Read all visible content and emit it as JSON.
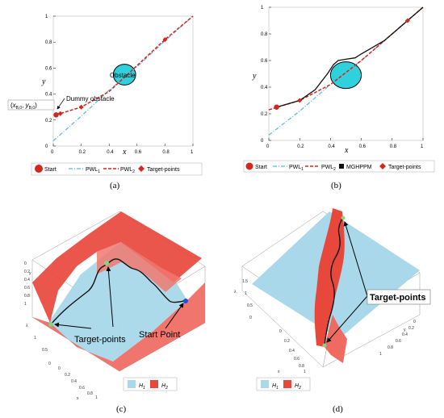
{
  "chart_data": [
    {
      "panel": "a",
      "type": "line",
      "caption": "(a)",
      "xlabel": "x",
      "ylabel": "y",
      "xlim": [
        0,
        1
      ],
      "ylim": [
        0,
        1
      ],
      "xticks": [
        "0",
        "0.2",
        "0.4",
        "0.6",
        "0.8",
        "1"
      ],
      "yticks": [
        "0",
        "0.2",
        "0.4",
        "0.6",
        "0.8",
        "1"
      ],
      "obstacle": {
        "label": "Obstacle",
        "cx": 0.51,
        "cy": 0.55,
        "r": 0.08
      },
      "dummy_label": "Dummy obstacle",
      "start_label": "(x_{B,0}, y_{B,0})",
      "start_point": {
        "x": 0.02,
        "y": 0.24
      },
      "series": [
        {
          "name": "PWL1",
          "style": "dash-dot",
          "color": "#5bb8d6",
          "x": [
            0,
            0.2,
            0.4,
            0.6,
            0.8,
            1.0
          ],
          "y": [
            0.04,
            0.23,
            0.43,
            0.61,
            0.81,
            1.0
          ]
        },
        {
          "name": "PWL2",
          "style": "dashed",
          "color": "#d4261c",
          "x": [
            0.02,
            0.2,
            0.4,
            0.6,
            0.8,
            1.0
          ],
          "y": [
            0.24,
            0.3,
            0.42,
            0.62,
            0.82,
            1.0
          ]
        }
      ],
      "target_points": [
        {
          "x": 0.05,
          "y": 0.25
        },
        {
          "x": 0.2,
          "y": 0.3
        },
        {
          "x": 0.8,
          "y": 0.82
        }
      ],
      "legend": [
        "Start",
        "PWL1",
        "PWL2",
        "Target-points"
      ]
    },
    {
      "panel": "b",
      "type": "line",
      "caption": "(b)",
      "xlabel": "x",
      "ylabel": "y",
      "xlim": [
        0,
        1
      ],
      "ylim": [
        0,
        1
      ],
      "xticks": [
        "0",
        "0.2",
        "0.4",
        "0.6",
        "0.8",
        "1"
      ],
      "yticks": [
        "0",
        "0.2",
        "0.4",
        "0.6",
        "0.8",
        "1"
      ],
      "obstacle": {
        "cx": 0.5,
        "cy": 0.49,
        "r": 0.1
      },
      "start_point": {
        "x": 0.05,
        "y": 0.25
      },
      "series": [
        {
          "name": "PWL1",
          "style": "dash-dot",
          "color": "#5bb8d6",
          "x": [
            0,
            0.2,
            0.4,
            0.6,
            0.8,
            1.0
          ],
          "y": [
            0.04,
            0.22,
            0.42,
            0.6,
            0.8,
            1.0
          ]
        },
        {
          "name": "PWL2",
          "style": "dashed",
          "color": "#d4261c",
          "x": [
            0,
            0.2,
            0.4,
            0.6,
            0.8,
            1.0
          ],
          "y": [
            0.23,
            0.3,
            0.42,
            0.6,
            0.8,
            1.0
          ]
        },
        {
          "name": "MGHPPM",
          "style": "solid",
          "color": "#111111",
          "x": [
            0.05,
            0.2,
            0.3,
            0.38,
            0.42,
            0.45,
            0.5,
            0.56,
            0.6,
            0.66,
            0.75,
            0.9,
            1.0
          ],
          "y": [
            0.25,
            0.3,
            0.38,
            0.5,
            0.57,
            0.6,
            0.61,
            0.62,
            0.65,
            0.69,
            0.75,
            0.9,
            1.0
          ]
        }
      ],
      "target_points": [
        {
          "x": 0.05,
          "y": 0.25
        },
        {
          "x": 0.2,
          "y": 0.3
        },
        {
          "x": 0.9,
          "y": 0.9
        }
      ],
      "legend": [
        "Start",
        "PWL1",
        "PWL2",
        "MGHPPM",
        "Target-points"
      ]
    }
  ],
  "panel_c": {
    "caption": "(c)",
    "annotations": {
      "targets": "Target-points",
      "start": "Start Point"
    },
    "legend": [
      "H1",
      "H2"
    ],
    "axis_labels": {
      "lambda": "λ",
      "x": "x",
      "y": "y"
    },
    "ticks_left": [
      "0",
      "0.2",
      "0.4",
      "0.6",
      "0.8",
      "1"
    ],
    "ticks_bottom_lambda": [
      "1",
      "0.5",
      "0"
    ],
    "ticks_bottom_x": [
      "0",
      "0.2",
      "0.4",
      "0.6",
      "0.8",
      "1"
    ]
  },
  "panel_d": {
    "caption": "(d)",
    "annotations": {
      "targets": "Target-points"
    },
    "legend": [
      "H1",
      "H2"
    ],
    "axis_labels": {
      "lambda": "λ",
      "x": "x",
      "y": "y"
    },
    "ticks_left": [
      "1.5",
      "1",
      "0.5",
      "0"
    ],
    "ticks_bottom_x": [
      "0",
      "0.2",
      "0.4",
      "0.6",
      "0.8",
      "1"
    ],
    "ticks_right": [
      "0",
      "0.2",
      "0.4",
      "0.6",
      "0.8",
      "1"
    ]
  },
  "colors": {
    "h1": "#a8d8ea",
    "h2": "#e8483c",
    "pwl1": "#5bb8d6",
    "pwl2": "#d4261c",
    "target": "#d4261c",
    "obstacle": "#2fd1dc",
    "path": "#111111"
  }
}
